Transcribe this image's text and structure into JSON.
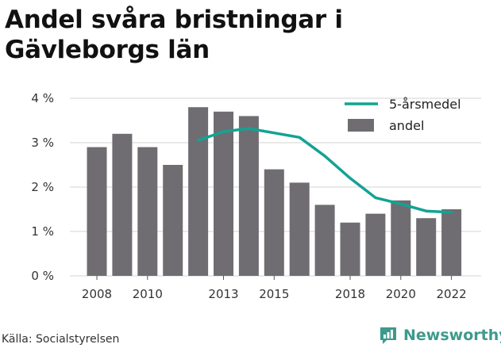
{
  "title": "Andel svåra bristningar i Gävleborgs län",
  "source": "Källa: Socialstyrelsen",
  "brand": "Newsworthy",
  "colors": {
    "bar": "#6f6d72",
    "line": "#12a393",
    "grid": "#d3d3d3",
    "text": "#333333",
    "brand": "#3d9a8c"
  },
  "chart_data": {
    "type": "bar",
    "x": [
      2008,
      2009,
      2010,
      2011,
      2012,
      2013,
      2014,
      2015,
      2016,
      2017,
      2018,
      2019,
      2020,
      2021,
      2022
    ],
    "x_tick_labels": [
      "2008",
      "2010",
      "2013",
      "2015",
      "2018",
      "2020",
      "2022"
    ],
    "y_ticks": [
      0,
      1,
      2,
      3,
      4
    ],
    "y_tick_labels": [
      "0 %",
      "1 %",
      "2 %",
      "3 %",
      "4 %"
    ],
    "ylim": [
      0,
      4.2
    ],
    "grid": true,
    "legend_position": "top-right",
    "series": [
      {
        "name": "andel",
        "type": "bar",
        "values": [
          2.9,
          3.2,
          2.9,
          2.5,
          3.8,
          3.7,
          3.6,
          2.4,
          2.1,
          1.6,
          1.2,
          1.4,
          1.7,
          1.3,
          1.5
        ]
      },
      {
        "name": "5-årsmedel",
        "type": "line",
        "values": [
          null,
          null,
          null,
          null,
          3.05,
          3.25,
          3.32,
          3.22,
          3.12,
          2.7,
          2.2,
          1.76,
          1.62,
          1.46,
          1.43
        ]
      }
    ]
  }
}
